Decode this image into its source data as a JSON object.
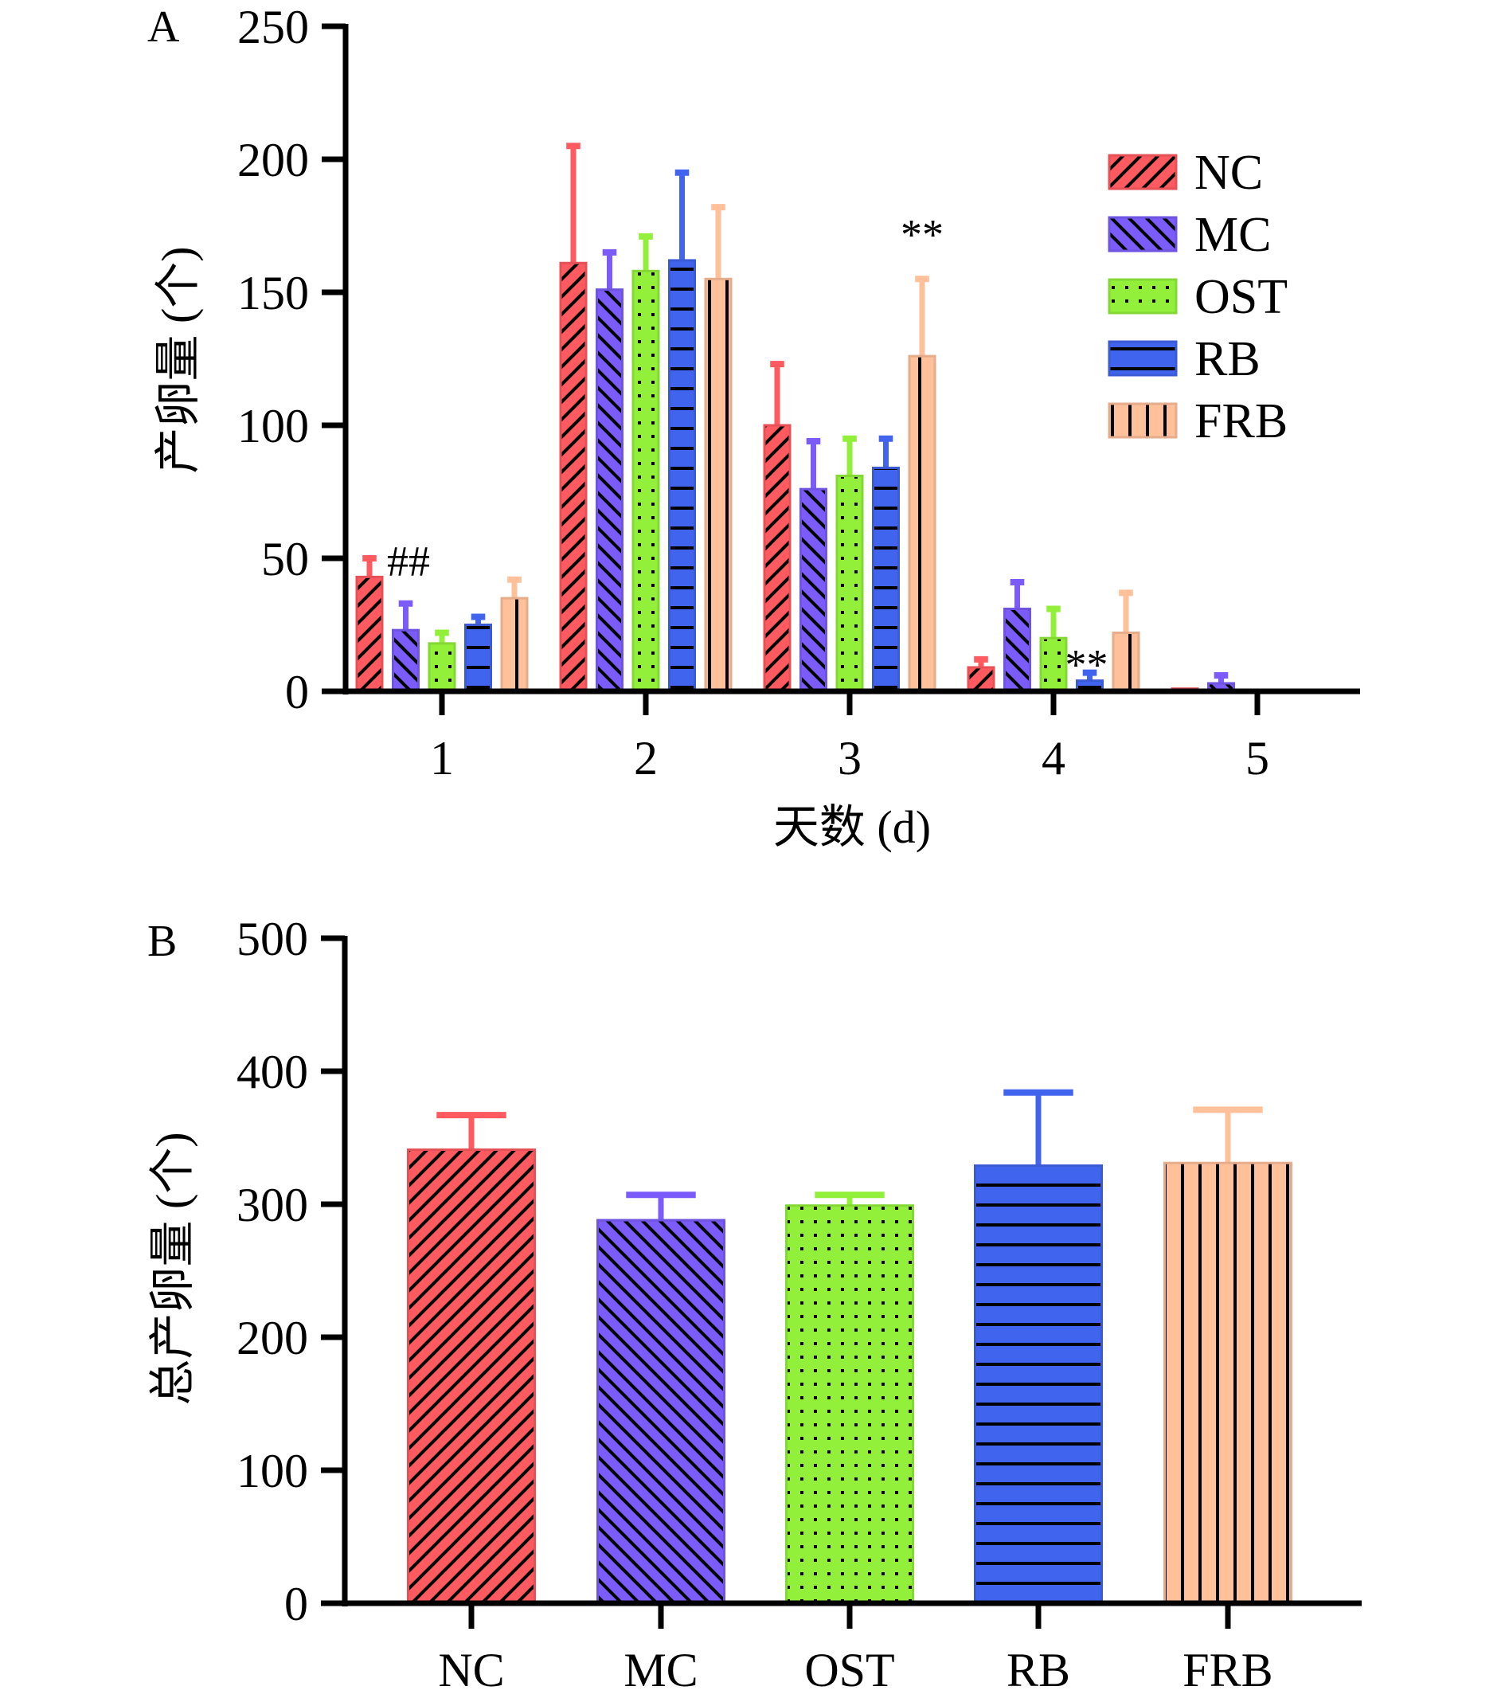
{
  "chart_data": [
    {
      "panel": "A",
      "type": "bar",
      "title": "",
      "xlabel": "天数 (d)",
      "ylabel": "产卵量 (个)",
      "ylim": [
        0,
        250
      ],
      "yticks": [
        0,
        50,
        100,
        150,
        200,
        250
      ],
      "categories": [
        "1",
        "2",
        "3",
        "4",
        "5"
      ],
      "legend": {
        "placement": "top-right"
      },
      "series": [
        {
          "name": "NC",
          "color": "#FF5A5F",
          "pattern": "diagonal-up",
          "values": [
            43,
            161,
            100,
            9,
            1
          ],
          "error_upper": [
            50,
            205,
            123,
            12,
            1
          ]
        },
        {
          "name": "MC",
          "color": "#7B5CFA",
          "pattern": "diagonal-down",
          "values": [
            23,
            151,
            76,
            31,
            3
          ],
          "error_upper": [
            33,
            165,
            94,
            41,
            6
          ]
        },
        {
          "name": "OST",
          "color": "#93F03A",
          "pattern": "dots",
          "values": [
            18,
            158,
            81,
            20,
            0
          ],
          "error_upper": [
            22,
            171,
            95,
            31,
            0
          ]
        },
        {
          "name": "RB",
          "color": "#4064EE",
          "pattern": "horizontal",
          "values": [
            25,
            162,
            84,
            4,
            0
          ],
          "error_upper": [
            28,
            195,
            95,
            7,
            0
          ]
        },
        {
          "name": "FRB",
          "color": "#FFC09A",
          "pattern": "vertical",
          "values": [
            35,
            155,
            126,
            22,
            0
          ],
          "error_upper": [
            42,
            182,
            155,
            37,
            0
          ]
        }
      ],
      "annotations": [
        {
          "text": "##",
          "category": "1",
          "series": "NC"
        },
        {
          "text": "**",
          "category": "3",
          "series": "FRB"
        },
        {
          "text": "**",
          "category": "4",
          "series": "RB"
        }
      ]
    },
    {
      "panel": "B",
      "type": "bar",
      "title": "",
      "xlabel": "",
      "ylabel": "总产卵量 (个)",
      "ylim": [
        0,
        500
      ],
      "yticks": [
        0,
        100,
        200,
        300,
        400,
        500
      ],
      "categories": [
        "NC",
        "MC",
        "OST",
        "RB",
        "FRB"
      ],
      "values": [
        341,
        288,
        299,
        329,
        331
      ],
      "error_upper": [
        367,
        307,
        307,
        384,
        371
      ],
      "colors": [
        "#FF5A5F",
        "#7B5CFA",
        "#93F03A",
        "#4064EE",
        "#FFC09A"
      ],
      "patterns": [
        "diagonal-up",
        "diagonal-down",
        "dots",
        "horizontal",
        "vertical"
      ]
    }
  ]
}
